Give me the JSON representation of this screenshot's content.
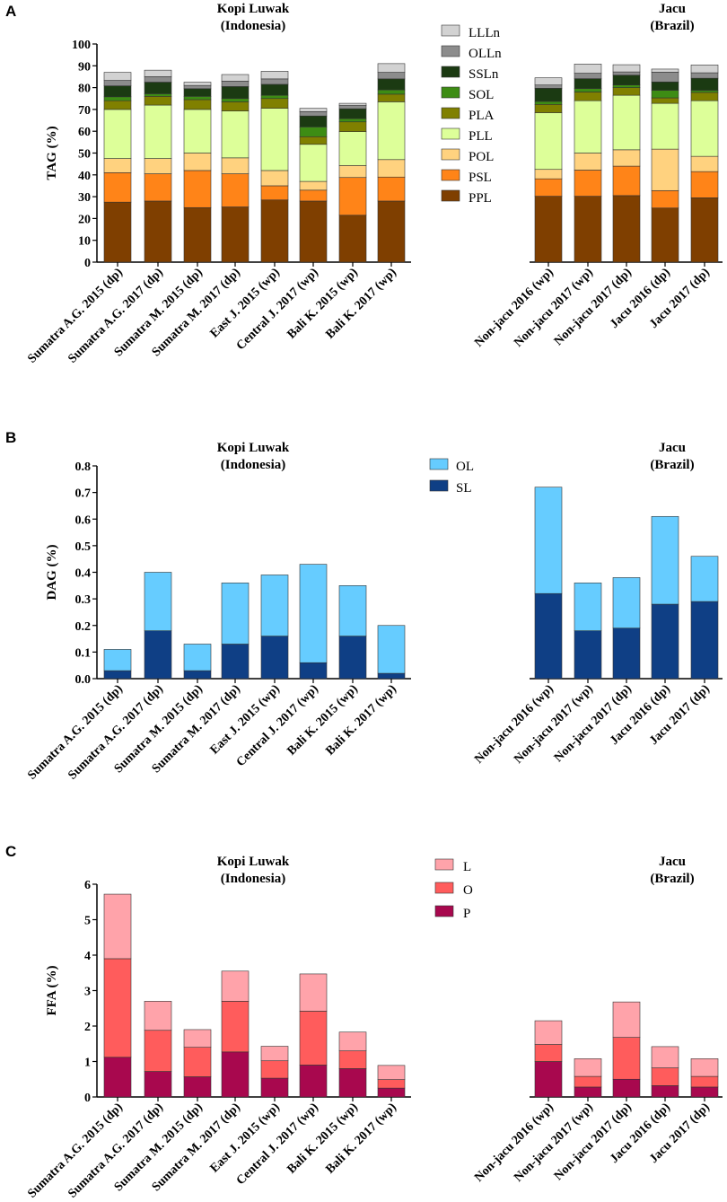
{
  "chart_data": [
    {
      "panel": "A",
      "type": "bar",
      "stacked": true,
      "ylabel": "TAG (%)",
      "ylim": [
        0,
        100
      ],
      "yticks": [
        0,
        10,
        20,
        30,
        40,
        50,
        60,
        70,
        80,
        90,
        100
      ],
      "ytick_labels": [
        "0",
        "10",
        "20",
        "30",
        "40",
        "50",
        "60",
        "70",
        "80",
        "90",
        "100"
      ],
      "groups": [
        {
          "title_line1": "Kopi Luwak",
          "title_line2": "(Indonesia)"
        },
        {
          "title_line1": "Jacu",
          "title_line2": "(Brazil)"
        }
      ],
      "categories": [
        "Sumatra A.G. 2015 (dp)",
        "Sumatra A.G. 2017 (dp)",
        "Sumatra M. 2015 (dp)",
        "Sumatra M. 2017 (dp)",
        "East J. 2015 (wp)",
        "Central J. 2017 (wp)",
        "Bali K. 2015 (wp)",
        "Bali K. 2017 (wp)",
        "Non-jacu 2016 (wp)",
        "Non-jacu 2017 (wp)",
        "Non-jacu 2017 (dp)",
        "Jacu 2016 (dp)",
        "Jacu 2017 (dp)"
      ],
      "category_group": [
        0,
        0,
        0,
        0,
        0,
        0,
        0,
        0,
        1,
        1,
        1,
        1,
        1
      ],
      "legend_order": [
        "LLLn",
        "OLLn",
        "SSLn",
        "SOL",
        "PLA",
        "PLL",
        "POL",
        "PSL",
        "PPL"
      ],
      "series": [
        {
          "name": "PPL",
          "color": "#7F3F00",
          "values": [
            27.5,
            28,
            25,
            25.3,
            28.5,
            28,
            21.5,
            28,
            30.2,
            30.2,
            30.5,
            24.8,
            29.5
          ]
        },
        {
          "name": "PSL",
          "color": "#FF8418",
          "values": [
            13.5,
            12.5,
            17,
            15.2,
            6.5,
            5,
            17.3,
            11,
            8,
            12,
            13.5,
            8,
            12
          ]
        },
        {
          "name": "POL",
          "color": "#FFD27F",
          "values": [
            6.5,
            7,
            8,
            7.3,
            7,
            4,
            5.5,
            8,
            4.3,
            7.8,
            7.5,
            19,
            7
          ]
        },
        {
          "name": "PLL",
          "color": "#DDFF99",
          "values": [
            22.5,
            24.5,
            20,
            21.5,
            28.5,
            17,
            15.5,
            26.5,
            26,
            24,
            25,
            21,
            25.5
          ]
        },
        {
          "name": "PLA",
          "color": "#808000",
          "values": [
            4,
            4,
            4.5,
            4.2,
            4.5,
            3.5,
            4.5,
            3.5,
            3.8,
            4,
            3.5,
            2.5,
            3.8
          ]
        },
        {
          "name": "SOL",
          "color": "#3D8C14",
          "values": [
            1.8,
            1.2,
            1.5,
            1.5,
            1.5,
            4.5,
            1.5,
            2,
            1.4,
            1.6,
            1.2,
            3.5,
            1
          ]
        },
        {
          "name": "SSLn",
          "color": "#1B3A12",
          "values": [
            5,
            5.3,
            3.5,
            5.5,
            5,
            5,
            4.5,
            5,
            6,
            4.5,
            4.5,
            3.8,
            5.5
          ]
        },
        {
          "name": "OLLn",
          "color": "#8C8C8C",
          "values": [
            2.5,
            2.5,
            1.5,
            2.5,
            2.5,
            2,
            1.5,
            3,
            1.5,
            2.5,
            1.5,
            4.5,
            2.5
          ]
        },
        {
          "name": "LLLn",
          "color": "#D2D2D2",
          "values": [
            3.7,
            3,
            1.5,
            3,
            3.5,
            1.5,
            1,
            4,
            3.3,
            4.2,
            3.3,
            1.4,
            3.6
          ]
        }
      ]
    },
    {
      "panel": "B",
      "type": "bar",
      "stacked": true,
      "ylabel": "DAG (%)",
      "ylim": [
        0,
        0.8
      ],
      "yticks": [
        0,
        0.1,
        0.2,
        0.3,
        0.4,
        0.5,
        0.6,
        0.7,
        0.8
      ],
      "ytick_labels": [
        "0.0",
        "0.1",
        "0.2",
        "0.3",
        "0.4",
        "0.5",
        "0.6",
        "0.7",
        "0.8"
      ],
      "groups": [
        {
          "title_line1": "Kopi Luwak",
          "title_line2": "(Indonesia)"
        },
        {
          "title_line1": "Jacu",
          "title_line2": "(Brazil)"
        }
      ],
      "categories": [
        "Sumatra A.G. 2015 (dp)",
        "Sumatra A.G. 2017 (dp)",
        "Sumatra M. 2015 (dp)",
        "Sumatra M. 2017 (dp)",
        "East J. 2015 (wp)",
        "Central J. 2017 (wp)",
        "Bali K. 2015 (wp)",
        "Bali K. 2017 (wp)",
        "Non-jacu 2016 (wp)",
        "Non-jacu 2017 (wp)",
        "Non-jacu 2017 (dp)",
        "Jacu 2016 (dp)",
        "Jacu 2017 (dp)"
      ],
      "category_group": [
        0,
        0,
        0,
        0,
        0,
        0,
        0,
        0,
        1,
        1,
        1,
        1,
        1
      ],
      "legend_order": [
        "OL",
        "SL"
      ],
      "series": [
        {
          "name": "SL",
          "color": "#0F3F85",
          "values": [
            0.03,
            0.18,
            0.03,
            0.13,
            0.16,
            0.06,
            0.16,
            0.02,
            0.32,
            0.18,
            0.19,
            0.28,
            0.29
          ]
        },
        {
          "name": "OL",
          "color": "#66CCFF",
          "values": [
            0.08,
            0.22,
            0.1,
            0.23,
            0.23,
            0.37,
            0.19,
            0.18,
            0.4,
            0.18,
            0.19,
            0.33,
            0.17
          ]
        }
      ]
    },
    {
      "panel": "C",
      "type": "bar",
      "stacked": true,
      "ylabel": "FFA (%)",
      "ylim": [
        0,
        6
      ],
      "yticks": [
        0,
        1,
        2,
        3,
        4,
        5,
        6
      ],
      "ytick_labels": [
        "0",
        "1",
        "2",
        "3",
        "4",
        "5",
        "6"
      ],
      "groups": [
        {
          "title_line1": "Kopi Luwak",
          "title_line2": "(Indonesia)"
        },
        {
          "title_line1": "Jacu",
          "title_line2": "(Brazil)"
        }
      ],
      "categories": [
        "Sumatra A.G. 2015 (dp)",
        "Sumatra A.G. 2017 (dp)",
        "Sumatra M. 2015 (dp)",
        "Sumatra M. 2017 (dp)",
        "East J. 2015 (wp)",
        "Central J. 2017 (wp)",
        "Bali K. 2015 (wp)",
        "Bali K. 2017 (wp)",
        "Non-jacu 2016 (wp)",
        "Non-jacu 2017 (wp)",
        "Non-jacu 2017 (dp)",
        "Jacu 2016 (dp)",
        "Jacu 2017 (dp)"
      ],
      "category_group": [
        0,
        0,
        0,
        0,
        0,
        0,
        0,
        0,
        1,
        1,
        1,
        1,
        1
      ],
      "legend_order": [
        "L",
        "O",
        "P"
      ],
      "series": [
        {
          "name": "P",
          "color": "#A8084E",
          "values": [
            1.12,
            0.72,
            0.57,
            1.27,
            0.53,
            0.9,
            0.8,
            0.25,
            1.0,
            0.28,
            0.5,
            0.32,
            0.28
          ]
        },
        {
          "name": "O",
          "color": "#FF5C5C",
          "values": [
            2.78,
            1.16,
            0.83,
            1.43,
            0.49,
            1.52,
            0.5,
            0.24,
            0.48,
            0.3,
            1.18,
            0.5,
            0.3
          ]
        },
        {
          "name": "L",
          "color": "#FFA3AA",
          "values": [
            1.82,
            0.82,
            0.5,
            0.85,
            0.41,
            1.05,
            0.53,
            0.4,
            0.67,
            0.5,
            1.0,
            0.6,
            0.5
          ]
        }
      ]
    }
  ]
}
